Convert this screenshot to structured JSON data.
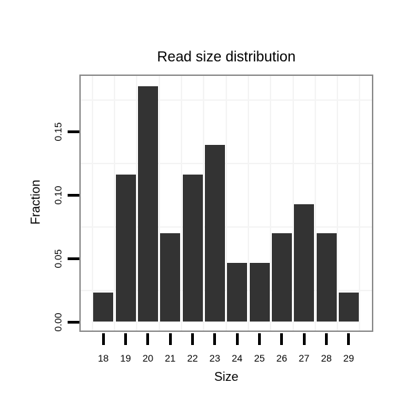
{
  "chart_data": {
    "type": "bar",
    "title": "Read size distribution",
    "xlabel": "Size",
    "ylabel": "Fraction",
    "categories": [
      "18",
      "19",
      "20",
      "21",
      "22",
      "23",
      "24",
      "25",
      "26",
      "27",
      "28",
      "29"
    ],
    "values": [
      0.0233,
      0.1163,
      0.186,
      0.0698,
      0.1163,
      0.1395,
      0.0465,
      0.0465,
      0.0698,
      0.093,
      0.0698,
      0.0233
    ],
    "y_ticks": [
      {
        "label": "0.00",
        "value": 0.0
      },
      {
        "label": "0.05",
        "value": 0.05
      },
      {
        "label": "0.10",
        "value": 0.1
      },
      {
        "label": "0.15",
        "value": 0.15
      }
    ],
    "ylim": [
      -0.007,
      0.195
    ],
    "minor_gridline_values": [
      0.025,
      0.075,
      0.125,
      0.175
    ],
    "vertical_gridlines_at_category_boundaries": true,
    "grid": "on",
    "legend": "none",
    "colors": {
      "bar": "#333333",
      "panel_border": "#8a8a8a",
      "gridline": "#f4f4f4",
      "tick": "#000000",
      "text": "#000000",
      "background": "#ffffff"
    }
  }
}
